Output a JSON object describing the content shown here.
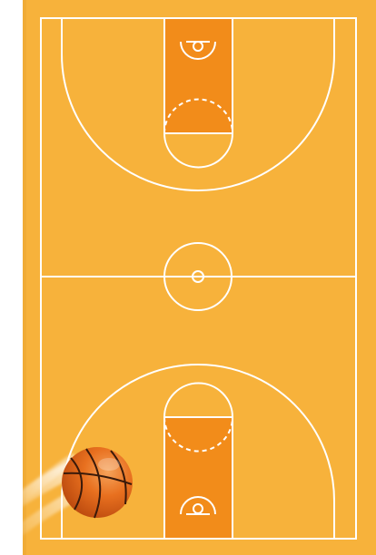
{
  "scene": {
    "subject": "basketball-court-top-view",
    "colors": {
      "background": "#ffffff",
      "court_floor": "#f7b23b",
      "paint": "#f28c1a",
      "lines": "#ffffff",
      "ball": "#e8701f",
      "ball_seams": "#3a1a0a"
    }
  }
}
